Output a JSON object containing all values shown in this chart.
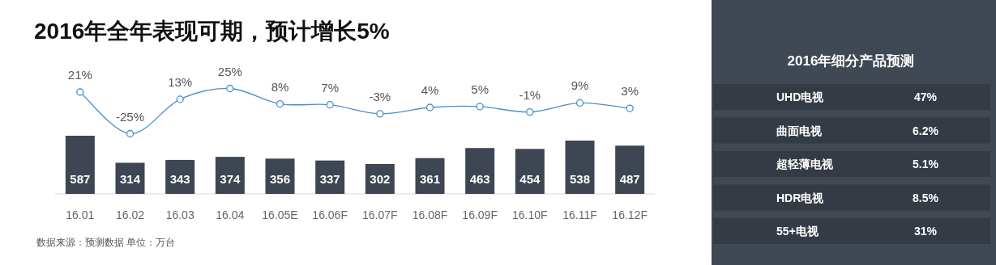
{
  "chart_data": [
    {
      "type": "bar",
      "annotations": [
        "数据来源：预测数据   单位：万台"
      ],
      "categories": [
        "16.01",
        "16.02",
        "16.03",
        "16.04",
        "16.05E",
        "16.06F",
        "16.07F",
        "16.08F",
        "16.09F",
        "16.10F",
        "16.11F",
        "16.12F"
      ],
      "data_labels": true,
      "color": "#3d4652",
      "values": [
        587,
        314,
        343,
        374,
        356,
        337,
        302,
        361,
        463,
        454,
        538,
        487
      ]
    },
    {
      "type": "line",
      "title": "2016年全年表现可期，预计增长5%",
      "categories": [
        null,
        null,
        null,
        null,
        null,
        null,
        null,
        null,
        null,
        null,
        null,
        null
      ],
      "color": "#4b8fca",
      "marker": "circle",
      "values": [
        21,
        -25,
        13,
        25,
        8,
        7,
        -3,
        4,
        5,
        -1,
        9,
        3
      ],
      "value_labels": [
        "21%",
        "-25%",
        "13%",
        "25%",
        "8%",
        "7%",
        "-3%",
        "4%",
        "5%",
        "-1%",
        "9%",
        "3%"
      ]
    },
    {
      "type": "other",
      "title": "2016年细分产品预测",
      "annotations": [
        "UHD电视",
        "47%",
        "曲面电视",
        "6.2%",
        "超轻薄电视",
        "5.1%",
        "HDR电视",
        "8.5%",
        "55+电视",
        "31%"
      ]
    }
  ]
}
